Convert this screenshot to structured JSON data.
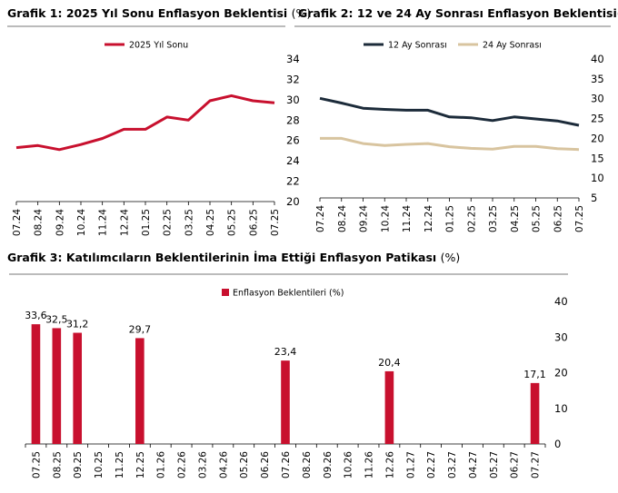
{
  "chart_data": [
    {
      "type": "line",
      "title": "Grafik 1: 2025 Yıl Sonu Enflasyon Beklentisi",
      "unit": "(%)",
      "categories": [
        "07.24",
        "08.24",
        "09.24",
        "10.24",
        "11.24",
        "12.24",
        "01.25",
        "02.25",
        "03.25",
        "04.25",
        "05.25",
        "06.25",
        "07.25"
      ],
      "series": [
        {
          "name": "2025 Yıl Sonu",
          "color": "#c8102e",
          "values": [
            25.3,
            25.5,
            25.1,
            25.6,
            26.2,
            27.1,
            27.1,
            28.3,
            28.0,
            29.9,
            30.4,
            29.9,
            29.7
          ]
        }
      ],
      "ylim": [
        20,
        34
      ],
      "yticks": [
        20,
        22,
        24,
        26,
        28,
        30,
        32,
        34
      ],
      "y_axis_side": "right",
      "legend": "top"
    },
    {
      "type": "line",
      "title": "Grafik 2: 12 ve 24 Ay Sonrası Enflasyon Beklentisi",
      "unit": "(%)",
      "categories": [
        "07.24",
        "08.24",
        "09.24",
        "10.24",
        "11.24",
        "12.24",
        "01.25",
        "02.25",
        "03.25",
        "04.25",
        "05.25",
        "06.25",
        "07.25"
      ],
      "series": [
        {
          "name": "12 Ay Sonrası",
          "color": "#1c2b3a",
          "values": [
            30.1,
            28.9,
            27.6,
            27.3,
            27.1,
            27.1,
            25.4,
            25.2,
            24.5,
            25.4,
            24.9,
            24.4,
            23.3
          ]
        },
        {
          "name": "24 Ay Sonrası",
          "color": "#d8c49f",
          "values": [
            20.0,
            20.0,
            18.7,
            18.2,
            18.5,
            18.7,
            17.9,
            17.5,
            17.3,
            18.0,
            18.0,
            17.4,
            17.2
          ]
        }
      ],
      "ylim": [
        5,
        40
      ],
      "yticks": [
        5,
        10,
        15,
        20,
        25,
        30,
        35,
        40
      ],
      "y_axis_side": "right",
      "legend": "top"
    },
    {
      "type": "bar",
      "title": "Grafik 3: Katılımcıların Beklentilerinin İma Ettiği Enflasyon Patikası",
      "unit": "(%)",
      "categories": [
        "07.25",
        "08.25",
        "09.25",
        "10.25",
        "11.25",
        "12.25",
        "01.26",
        "02.26",
        "03.26",
        "04.26",
        "05.26",
        "06.26",
        "07.26",
        "08.26",
        "09.26",
        "10.26",
        "11.26",
        "12.26",
        "01.27",
        "02.27",
        "03.27",
        "04.27",
        "05.27",
        "06.27",
        "07.27"
      ],
      "series": [
        {
          "name": "Enflasyon Beklentileri (%)",
          "color": "#c8102e",
          "values": [
            33.6,
            32.5,
            31.2,
            null,
            null,
            29.7,
            null,
            null,
            null,
            null,
            null,
            null,
            23.4,
            null,
            null,
            null,
            null,
            20.4,
            null,
            null,
            null,
            null,
            null,
            null,
            17.1
          ],
          "labels": [
            "33,6",
            "32,5",
            "31,2",
            "",
            "",
            "29,7",
            "",
            "",
            "",
            "",
            "",
            "",
            "23,4",
            "",
            "",
            "",
            "",
            "20,4",
            "",
            "",
            "",
            "",
            "",
            "",
            "17,1"
          ]
        }
      ],
      "ylim": [
        0,
        40
      ],
      "yticks": [
        0,
        10,
        20,
        30,
        40
      ],
      "y_axis_side": "right",
      "legend": "top"
    }
  ]
}
